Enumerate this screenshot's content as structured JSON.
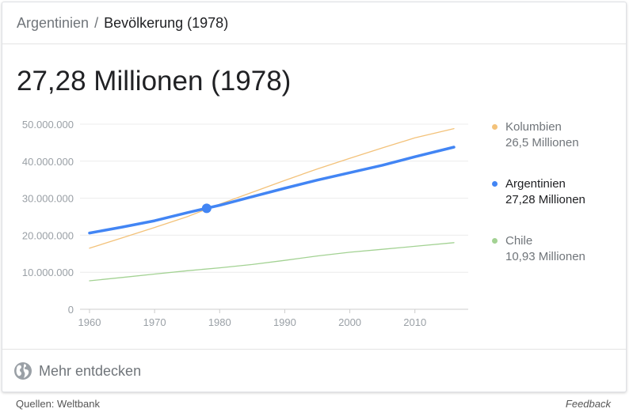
{
  "header": {
    "country": "Argentinien",
    "separator": "/",
    "page": "Bevölkerung (1978)"
  },
  "headline": "27,28 Millionen (1978)",
  "legend": [
    {
      "name": "Kolumbien",
      "value": "26,5 Millionen",
      "color": "#f3c27a",
      "highlighted": false
    },
    {
      "name": "Argentinien",
      "value": "27,28 Millionen",
      "color": "#4285f4",
      "highlighted": true
    },
    {
      "name": "Chile",
      "value": "10,93 Millionen",
      "color": "#a3d293",
      "highlighted": false
    }
  ],
  "footer": {
    "more_label": "Mehr entdecken",
    "sources": "Quellen: Weltbank",
    "feedback": "Feedback"
  },
  "chart_data": {
    "type": "line",
    "ylim": [
      0,
      50000000
    ],
    "xlim": [
      1960,
      2016
    ],
    "y_ticks": [
      {
        "value": 0,
        "label": "0"
      },
      {
        "value": 10000000,
        "label": "10.000.000"
      },
      {
        "value": 20000000,
        "label": "20.000.000"
      },
      {
        "value": 30000000,
        "label": "30.000.000"
      },
      {
        "value": 40000000,
        "label": "40.000.000"
      },
      {
        "value": 50000000,
        "label": "50.000.000"
      }
    ],
    "x_ticks": [
      1960,
      1970,
      1980,
      1990,
      2000,
      2010
    ],
    "grid": true,
    "highlight_point": {
      "series": "Argentinien",
      "x": 1978,
      "y": 27280000
    },
    "series": [
      {
        "name": "Kolumbien",
        "color": "#f3c27a",
        "x": [
          1960,
          1965,
          1970,
          1975,
          1980,
          1985,
          1990,
          1995,
          2000,
          2005,
          2010,
          2016
        ],
        "values": [
          16500000,
          19300000,
          22100000,
          25000000,
          28400000,
          31600000,
          34800000,
          37900000,
          40800000,
          43600000,
          46300000,
          48800000
        ]
      },
      {
        "name": "Argentinien",
        "color": "#4285f4",
        "x": [
          1960,
          1965,
          1970,
          1975,
          1980,
          1985,
          1990,
          1995,
          2000,
          2005,
          2010,
          2016
        ],
        "values": [
          20600000,
          22200000,
          23900000,
          26100000,
          28100000,
          30400000,
          32700000,
          34900000,
          36900000,
          38900000,
          41200000,
          43800000
        ]
      },
      {
        "name": "Chile",
        "color": "#a3d293",
        "x": [
          1960,
          1965,
          1970,
          1975,
          1980,
          1985,
          1990,
          1995,
          2000,
          2005,
          2010,
          2016
        ],
        "values": [
          7700000,
          8600000,
          9500000,
          10400000,
          11200000,
          12100000,
          13200000,
          14400000,
          15400000,
          16200000,
          17000000,
          18000000
        ]
      }
    ]
  }
}
